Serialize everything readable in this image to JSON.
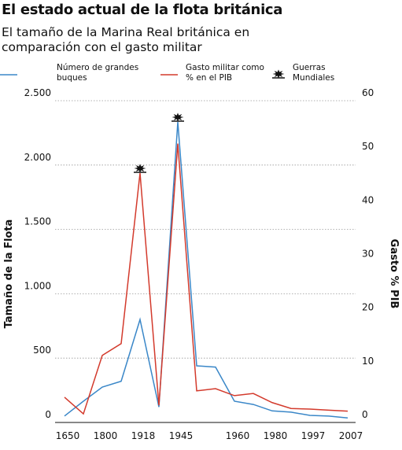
{
  "chart_data": {
    "type": "line",
    "title": "El estado actual de la flota británica",
    "subtitle": "El tamaño de la Marina Real británica en comparación con el gasto militar",
    "categories": [
      "1650",
      null,
      "1800",
      null,
      "1918",
      null,
      "1945",
      null,
      null,
      "1960",
      null,
      "1980",
      null,
      "1997",
      null,
      "2007"
    ],
    "series": [
      {
        "name": "Número de grandes buques",
        "color": "#3a87c8",
        "axis": "y",
        "values": [
          50,
          165,
          275,
          320,
          800,
          120,
          2335,
          440,
          430,
          165,
          140,
          90,
          80,
          55,
          50,
          35
        ]
      },
      {
        "name": "Gasto militar como % en el PIB",
        "color": "#d33a2c",
        "axis": "y2",
        "values": [
          4.7,
          1.6,
          12.5,
          14.7,
          46.5,
          3.2,
          52,
          5.9,
          6.3,
          5,
          5.4,
          3.7,
          2.6,
          2.5,
          2.3,
          2.1
        ]
      }
    ],
    "legend_marker": "Guerras Mundiales",
    "ylabel": "Tamaño de la Flota",
    "y2label": "Gasto % PIB",
    "ylim": [
      0,
      2500
    ],
    "yticks": [
      0,
      500,
      {
        "value": 1000,
        "label": "1.000"
      },
      {
        "value": 1500,
        "label": "1.500"
      },
      {
        "value": 2000,
        "label": "2.000"
      },
      {
        "value": 2500,
        "label": "2.500"
      }
    ],
    "y2lim": [
      0,
      60
    ],
    "y2ticks": [
      0,
      10,
      20,
      30,
      40,
      50,
      60
    ],
    "grid": true
  }
}
